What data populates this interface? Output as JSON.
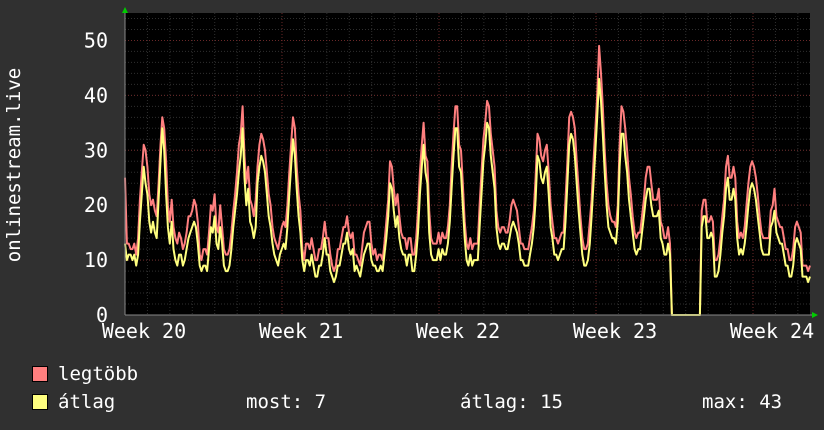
{
  "chart_data": {
    "type": "line",
    "ylabel": "onlinestream.live",
    "ylim": [
      0,
      55
    ],
    "yticks": [
      0,
      10,
      20,
      30,
      40,
      50
    ],
    "x_ticks": [
      "Week 20",
      "Week 21",
      "Week 22",
      "Week 23",
      "Week 24"
    ],
    "grid": true,
    "series": [
      {
        "name": "legtöbb",
        "color": "#ff7f7f",
        "values": [
          25,
          13,
          13,
          12,
          12,
          13,
          11,
          14,
          21,
          26,
          31,
          30,
          27,
          22,
          20,
          21,
          19,
          18,
          24,
          31,
          36,
          34,
          28,
          20,
          17,
          21,
          16,
          14,
          13,
          15,
          14,
          12,
          13,
          15,
          18,
          18,
          19,
          21,
          20,
          17,
          11,
          10,
          12,
          12,
          11,
          15,
          20,
          19,
          22,
          16,
          15,
          20,
          16,
          12,
          11,
          11,
          12,
          15,
          19,
          22,
          26,
          31,
          33,
          38,
          29,
          24,
          27,
          21,
          20,
          18,
          21,
          27,
          31,
          33,
          32,
          30,
          26,
          22,
          20,
          16,
          14,
          13,
          12,
          14,
          16,
          17,
          16,
          20,
          26,
          31,
          36,
          34,
          27,
          22,
          19,
          12,
          10,
          13,
          13,
          12,
          14,
          12,
          10,
          10,
          12,
          12,
          14,
          17,
          14,
          14,
          11,
          9,
          8,
          9,
          12,
          12,
          14,
          16,
          16,
          18,
          15,
          14,
          15,
          11,
          11,
          10,
          9,
          12,
          15,
          16,
          17,
          17,
          13,
          11,
          12,
          10,
          11,
          11,
          10,
          13,
          17,
          21,
          28,
          27,
          23,
          20,
          22,
          18,
          15,
          14,
          14,
          12,
          14,
          14,
          11,
          11,
          14,
          19,
          26,
          31,
          35,
          29,
          28,
          19,
          14,
          13,
          13,
          13,
          15,
          13,
          15,
          14,
          14,
          16,
          20,
          27,
          33,
          38,
          38,
          31,
          30,
          24,
          17,
          13,
          12,
          14,
          12,
          13,
          13,
          13,
          20,
          26,
          32,
          35,
          39,
          38,
          33,
          30,
          27,
          19,
          16,
          15,
          16,
          16,
          15,
          15,
          17,
          20,
          21,
          20,
          19,
          16,
          13,
          13,
          12,
          12,
          12,
          14,
          16,
          19,
          25,
          33,
          32,
          29,
          28,
          30,
          31,
          26,
          20,
          17,
          14,
          14,
          13,
          14,
          15,
          15,
          21,
          28,
          36,
          37,
          36,
          34,
          28,
          23,
          18,
          14,
          12,
          12,
          13,
          17,
          21,
          28,
          34,
          40,
          49,
          44,
          38,
          30,
          24,
          20,
          18,
          17,
          17,
          16,
          20,
          31,
          38,
          37,
          34,
          30,
          25,
          22,
          18,
          15,
          14,
          15,
          15,
          18,
          21,
          25,
          27,
          27,
          24,
          21,
          21,
          21,
          23,
          17,
          16,
          14,
          14,
          16,
          13,
          0,
          0,
          0,
          0,
          0,
          0,
          0,
          0,
          0,
          0,
          0,
          0,
          0,
          0,
          0,
          0,
          19,
          21,
          21,
          17,
          17,
          18,
          17,
          10,
          10,
          11,
          14,
          18,
          21,
          27,
          29,
          25,
          25,
          27,
          25,
          17,
          14,
          15,
          14,
          16,
          20,
          24,
          27,
          28,
          27,
          25,
          22,
          18,
          15,
          14,
          14,
          14,
          14,
          19,
          20,
          23,
          18,
          17,
          16,
          16,
          14,
          12,
          12,
          10,
          10,
          12,
          16,
          17,
          16,
          15,
          9,
          9,
          9,
          8,
          9
        ]
      },
      {
        "name": "átlag",
        "color": "#ffff7f",
        "values": [
          13,
          10,
          11,
          11,
          10,
          11,
          9,
          11,
          17,
          22,
          27,
          24,
          22,
          17,
          15,
          17,
          15,
          14,
          21,
          28,
          34,
          30,
          22,
          16,
          13,
          17,
          12,
          10,
          9,
          11,
          11,
          9,
          10,
          12,
          14,
          15,
          16,
          17,
          16,
          13,
          9,
          8,
          9,
          9,
          8,
          12,
          16,
          15,
          18,
          13,
          12,
          16,
          13,
          9,
          8,
          8,
          9,
          12,
          16,
          19,
          22,
          26,
          29,
          34,
          25,
          20,
          23,
          17,
          16,
          14,
          16,
          24,
          27,
          29,
          28,
          26,
          22,
          18,
          16,
          13,
          11,
          10,
          9,
          11,
          12,
          13,
          12,
          16,
          22,
          27,
          32,
          29,
          23,
          18,
          15,
          10,
          8,
          10,
          10,
          9,
          11,
          9,
          7,
          7,
          9,
          9,
          11,
          14,
          11,
          11,
          8,
          7,
          6,
          7,
          9,
          9,
          11,
          13,
          13,
          15,
          12,
          11,
          12,
          8,
          9,
          8,
          7,
          9,
          11,
          12,
          13,
          13,
          10,
          9,
          9,
          8,
          8,
          9,
          8,
          11,
          14,
          18,
          24,
          23,
          19,
          16,
          18,
          14,
          12,
          11,
          11,
          9,
          11,
          11,
          8,
          8,
          11,
          15,
          22,
          27,
          31,
          26,
          24,
          15,
          11,
          10,
          10,
          10,
          12,
          10,
          12,
          11,
          11,
          13,
          17,
          23,
          29,
          34,
          34,
          27,
          26,
          20,
          14,
          10,
          9,
          11,
          9,
          10,
          10,
          10,
          16,
          22,
          28,
          31,
          35,
          34,
          29,
          26,
          23,
          16,
          13,
          12,
          13,
          13,
          12,
          12,
          14,
          16,
          17,
          16,
          15,
          13,
          10,
          10,
          9,
          9,
          9,
          11,
          13,
          16,
          21,
          29,
          28,
          25,
          24,
          26,
          27,
          22,
          16,
          14,
          11,
          11,
          10,
          11,
          12,
          12,
          17,
          24,
          31,
          33,
          32,
          29,
          24,
          19,
          15,
          11,
          9,
          9,
          10,
          13,
          18,
          24,
          30,
          36,
          43,
          39,
          33,
          26,
          20,
          16,
          15,
          14,
          14,
          13,
          17,
          27,
          33,
          33,
          29,
          26,
          21,
          18,
          15,
          12,
          11,
          12,
          12,
          15,
          18,
          21,
          23,
          23,
          20,
          18,
          18,
          18,
          19,
          14,
          13,
          11,
          11,
          13,
          11,
          0,
          0,
          0,
          0,
          0,
          0,
          0,
          0,
          0,
          0,
          0,
          0,
          0,
          0,
          0,
          0,
          16,
          18,
          18,
          14,
          14,
          15,
          14,
          7,
          7,
          8,
          11,
          15,
          18,
          23,
          25,
          21,
          21,
          23,
          21,
          14,
          11,
          12,
          11,
          13,
          16,
          20,
          23,
          24,
          23,
          21,
          18,
          15,
          12,
          11,
          11,
          11,
          11,
          16,
          17,
          19,
          15,
          14,
          13,
          13,
          11,
          9,
          9,
          7,
          7,
          9,
          13,
          14,
          13,
          12,
          7,
          7,
          7,
          6,
          7
        ]
      }
    ]
  },
  "legend": {
    "max_label": "legtöbb",
    "avg_label": "átlag",
    "stats": {
      "current": "most: 7",
      "average": "átlag: 15",
      "max": "max: 43"
    }
  }
}
